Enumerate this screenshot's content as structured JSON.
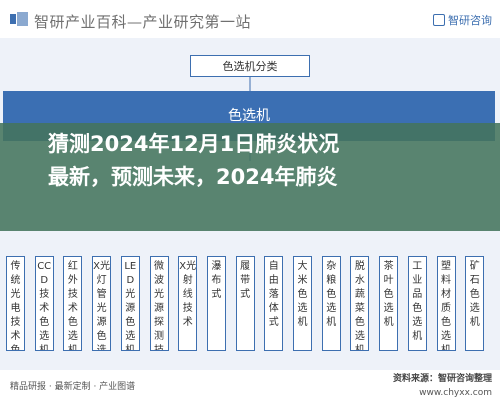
{
  "header": {
    "title": "智研产业百科—产业研究第一站",
    "brand": "智研咨询"
  },
  "diagram": {
    "root": "色选机分类",
    "banner": "色选机",
    "categories": [
      "传统光电技术色选机",
      "CCD技术色选机",
      "红外技术色选机",
      "X光灯管光源色选机",
      "LED光源色选机",
      "微波光源探测技术",
      "X光射线技术",
      "瀑布式",
      "履带式",
      "自由落体式",
      "大米色选机",
      "杂粮色选机",
      "脱水蔬菜色选机",
      "茶叶色选机",
      "工业品色选机",
      "塑料材质色选机",
      "矿石色选机"
    ]
  },
  "overlay": {
    "line1": "猜测2024年12月1日肺炎状况",
    "line2": "最新，预测未来，2024年肺炎"
  },
  "footer": {
    "left": "精品研报 · 最新定制 · 产业图谱",
    "source": "资料来源：智研咨询整理",
    "url": "www.chyxx.com"
  }
}
